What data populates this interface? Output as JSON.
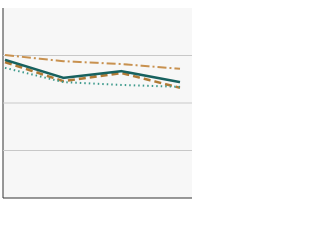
{
  "chart_data": {
    "type": "line",
    "categories": [
      null,
      null,
      null,
      null
    ],
    "series": [
      {
        "color": "#c8914f",
        "dash": "9,3,2,3",
        "width": 2,
        "values": [
          3.01,
          2.88,
          2.82,
          2.72
        ]
      },
      {
        "color": "#b07a35",
        "dash": "7,4",
        "width": 2.5,
        "values": [
          2.86,
          2.46,
          2.63,
          2.32
        ]
      },
      {
        "color": "#3d9a8c",
        "dash": "1.5,3",
        "width": 2,
        "values": [
          2.74,
          2.44,
          2.38,
          2.34
        ]
      },
      {
        "color": "#17615f",
        "dash": "none",
        "width": 2.5,
        "values": [
          2.91,
          2.53,
          2.67,
          2.44
        ]
      }
    ],
    "ylim": [
      0,
      4
    ],
    "yticks": [
      1,
      2,
      3
    ],
    "grid": true
  }
}
